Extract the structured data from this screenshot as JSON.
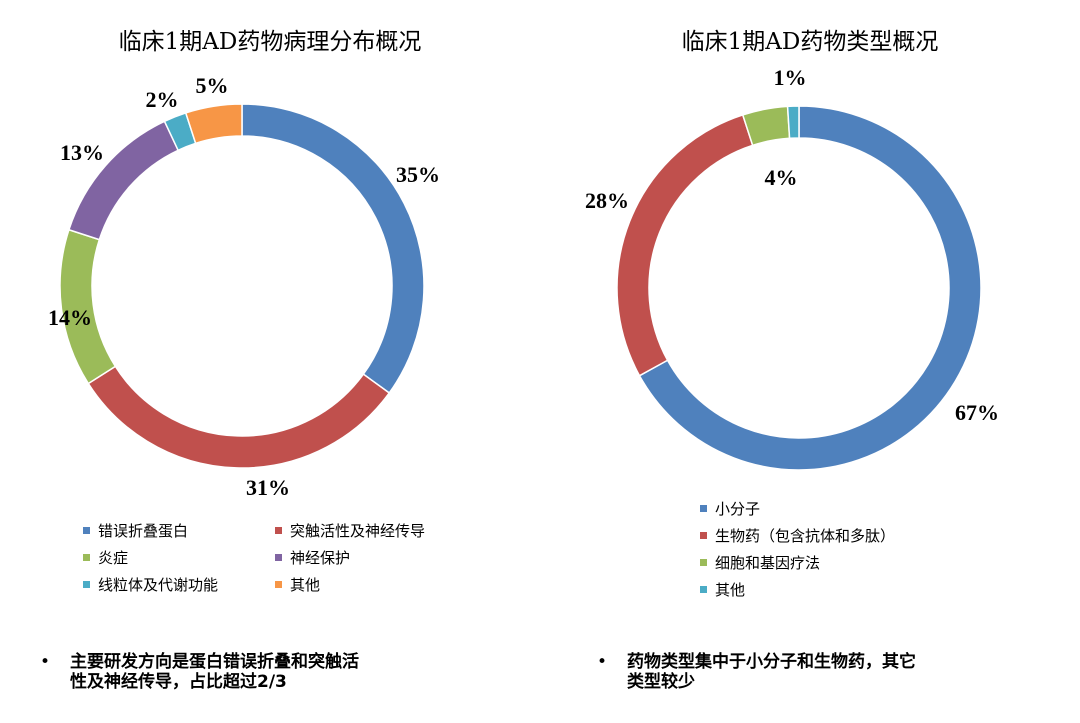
{
  "chart_data": [
    {
      "type": "pie",
      "title": "临床1期AD药物病理分布概况",
      "donut": true,
      "legend_position": "bottom",
      "categories": [
        "错误折叠蛋白",
        "突触活性及神经传导",
        "炎症",
        "神经保护",
        "线粒体及代谢功能",
        "其他"
      ],
      "values": [
        35,
        31,
        14,
        13,
        2,
        5
      ],
      "labels": [
        "35%",
        "31%",
        "14%",
        "13%",
        "2%",
        "5%"
      ],
      "colors": [
        "#4F81BD",
        "#C0504D",
        "#9BBB59",
        "#8064A2",
        "#4BACC6",
        "#F79646"
      ]
    },
    {
      "type": "pie",
      "title": "临床1期AD药物类型概况",
      "donut": true,
      "legend_position": "bottom",
      "categories": [
        "小分子",
        "生物药（包含抗体和多肽）",
        "细胞和基因疗法",
        "其他"
      ],
      "values": [
        67,
        28,
        4,
        1
      ],
      "labels": [
        "67%",
        "28%",
        "4%",
        "1%"
      ],
      "colors": [
        "#4F81BD",
        "#C0504D",
        "#9BBB59",
        "#4BACC6"
      ]
    }
  ],
  "notes": {
    "bullet": "•",
    "left": [
      "主要研发方向是蛋白错误折叠和突触活",
      "性及神经传导，占比超过2/3"
    ],
    "right": [
      "药物类型集中于小分子和生物药，其它",
      "类型较少"
    ]
  }
}
